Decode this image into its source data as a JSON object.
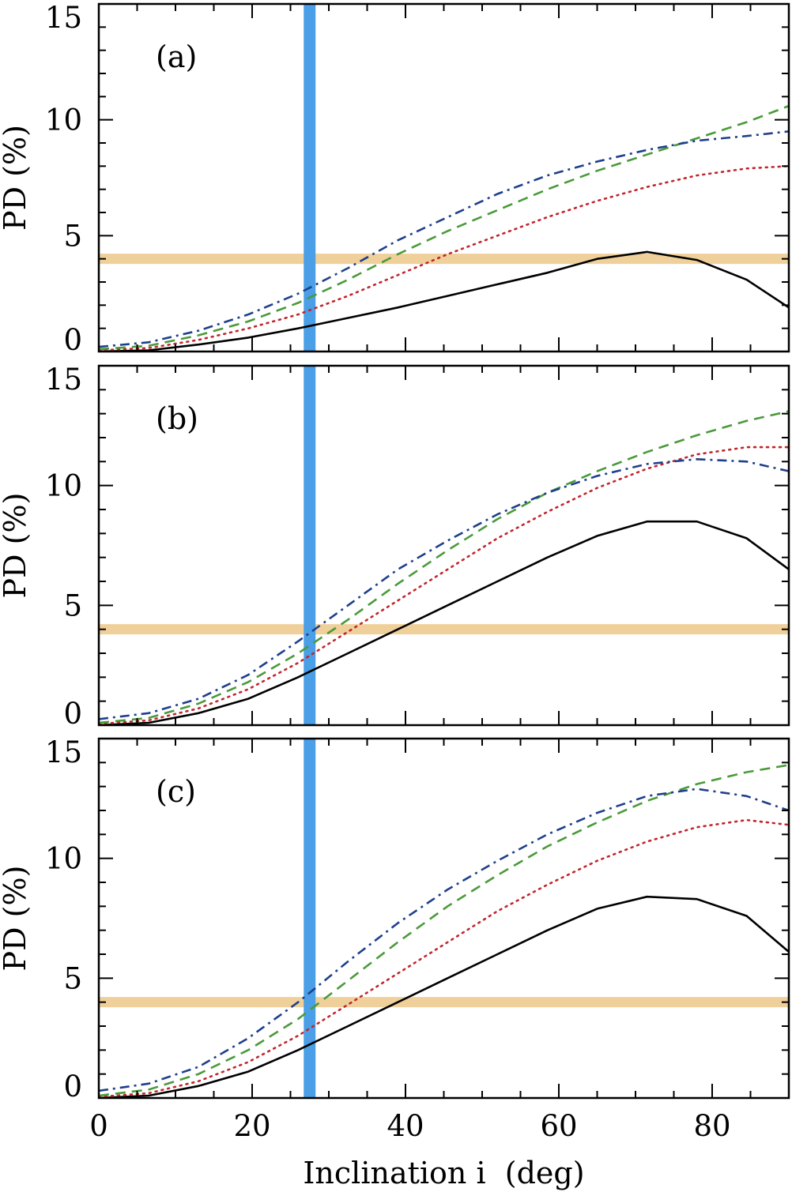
{
  "chart_data": [
    {
      "type": "line",
      "panel_label": "(a)",
      "ylabel": "PD (%)",
      "xlabel": "",
      "xlim": [
        0,
        90
      ],
      "ylim": [
        0,
        15
      ],
      "yticks": [
        "0",
        "5",
        "10",
        "15"
      ],
      "vertical_band_x": 27.5,
      "horizontal_band_y": 4.0,
      "series": [
        {
          "name": "solid",
          "color": "#000000",
          "dash": "solid",
          "x": [
            0,
            6.5,
            13,
            19.5,
            26,
            32.5,
            39,
            45.5,
            52,
            58.5,
            65,
            71.5,
            78,
            84.5,
            90
          ],
          "y": [
            0.0,
            0.05,
            0.3,
            0.6,
            1.0,
            1.45,
            1.9,
            2.4,
            2.9,
            3.4,
            4.0,
            4.3,
            3.95,
            3.1,
            1.9
          ]
        },
        {
          "name": "dotted",
          "color": "#c0262d",
          "dash": "dotted",
          "x": [
            0,
            6.5,
            13,
            19.5,
            26,
            32.5,
            39,
            45.5,
            52,
            58.5,
            65,
            71.5,
            78,
            84.5,
            90
          ],
          "y": [
            0.05,
            0.15,
            0.5,
            1.0,
            1.6,
            2.4,
            3.3,
            4.2,
            5.0,
            5.8,
            6.5,
            7.1,
            7.6,
            7.9,
            8.0
          ]
        },
        {
          "name": "dashed",
          "color": "#4a9a3a",
          "dash": "dashed",
          "x": [
            0,
            6.5,
            13,
            19.5,
            26,
            32.5,
            39,
            45.5,
            52,
            58.5,
            65,
            71.5,
            78,
            84.5,
            90
          ],
          "y": [
            0.1,
            0.25,
            0.7,
            1.3,
            2.1,
            3.1,
            4.2,
            5.2,
            6.1,
            7.0,
            7.8,
            8.5,
            9.2,
            9.9,
            10.6
          ]
        },
        {
          "name": "dash-dot",
          "color": "#1f3f8c",
          "dash": "dashdot",
          "x": [
            0,
            6.5,
            13,
            19.5,
            26,
            32.5,
            39,
            45.5,
            52,
            58.5,
            65,
            71.5,
            78,
            84.5,
            90
          ],
          "y": [
            0.2,
            0.4,
            0.9,
            1.6,
            2.5,
            3.6,
            4.8,
            5.8,
            6.8,
            7.6,
            8.2,
            8.7,
            9.1,
            9.3,
            9.5
          ]
        }
      ]
    },
    {
      "type": "line",
      "panel_label": "(b)",
      "ylabel": "PD (%)",
      "xlabel": "",
      "xlim": [
        0,
        90
      ],
      "ylim": [
        0,
        15
      ],
      "yticks": [
        "0",
        "5",
        "10",
        "15"
      ],
      "vertical_band_x": 27.5,
      "horizontal_band_y": 4.0,
      "series": [
        {
          "name": "solid",
          "color": "#000000",
          "dash": "solid",
          "x": [
            0,
            6.5,
            13,
            19.5,
            26,
            32.5,
            39,
            45.5,
            52,
            58.5,
            65,
            71.5,
            78,
            84.5,
            90
          ],
          "y": [
            0.0,
            0.1,
            0.5,
            1.1,
            2.0,
            3.0,
            4.0,
            5.0,
            6.0,
            7.0,
            7.9,
            8.5,
            8.5,
            7.8,
            6.5
          ]
        },
        {
          "name": "dotted",
          "color": "#c0262d",
          "dash": "dotted",
          "x": [
            0,
            6.5,
            13,
            19.5,
            26,
            32.5,
            39,
            45.5,
            52,
            58.5,
            65,
            71.5,
            78,
            84.5,
            90
          ],
          "y": [
            0.05,
            0.2,
            0.7,
            1.5,
            2.6,
            3.9,
            5.2,
            6.5,
            7.8,
            8.9,
            9.9,
            10.7,
            11.3,
            11.6,
            11.6
          ]
        },
        {
          "name": "dashed",
          "color": "#4a9a3a",
          "dash": "dashed",
          "x": [
            0,
            6.5,
            13,
            19.5,
            26,
            32.5,
            39,
            45.5,
            52,
            58.5,
            65,
            71.5,
            78,
            84.5,
            90
          ],
          "y": [
            0.1,
            0.3,
            0.9,
            1.8,
            3.0,
            4.4,
            5.9,
            7.3,
            8.6,
            9.7,
            10.6,
            11.4,
            12.1,
            12.7,
            13.1
          ]
        },
        {
          "name": "dash-dot",
          "color": "#1f3f8c",
          "dash": "dashdot",
          "x": [
            0,
            6.5,
            13,
            19.5,
            26,
            32.5,
            39,
            45.5,
            52,
            58.5,
            65,
            71.5,
            78,
            84.5,
            90
          ],
          "y": [
            0.25,
            0.5,
            1.1,
            2.1,
            3.5,
            5.0,
            6.5,
            7.7,
            8.8,
            9.7,
            10.4,
            10.9,
            11.1,
            11.0,
            10.6
          ]
        }
      ]
    },
    {
      "type": "line",
      "panel_label": "(c)",
      "ylabel": "PD (%)",
      "xlabel": "Inclination i  (deg)",
      "xlim": [
        0,
        90
      ],
      "ylim": [
        0,
        15
      ],
      "yticks": [
        "0",
        "5",
        "10",
        "15"
      ],
      "xticks": [
        "0",
        "20",
        "40",
        "60",
        "80"
      ],
      "vertical_band_x": 27.5,
      "horizontal_band_y": 4.0,
      "series": [
        {
          "name": "solid",
          "color": "#000000",
          "dash": "solid",
          "x": [
            0,
            6.5,
            13,
            19.5,
            26,
            32.5,
            39,
            45.5,
            52,
            58.5,
            65,
            71.5,
            78,
            84.5,
            90
          ],
          "y": [
            0.0,
            0.1,
            0.5,
            1.1,
            2.0,
            3.0,
            4.0,
            5.0,
            6.0,
            7.0,
            7.9,
            8.4,
            8.3,
            7.6,
            6.1
          ]
        },
        {
          "name": "dotted",
          "color": "#c0262d",
          "dash": "dotted",
          "x": [
            0,
            6.5,
            13,
            19.5,
            26,
            32.5,
            39,
            45.5,
            52,
            58.5,
            65,
            71.5,
            78,
            84.5,
            90
          ],
          "y": [
            0.05,
            0.2,
            0.7,
            1.5,
            2.6,
            3.9,
            5.2,
            6.5,
            7.8,
            8.9,
            9.9,
            10.7,
            11.3,
            11.6,
            11.4
          ]
        },
        {
          "name": "dashed",
          "color": "#4a9a3a",
          "dash": "dashed",
          "x": [
            0,
            6.5,
            13,
            19.5,
            26,
            32.5,
            39,
            45.5,
            52,
            58.5,
            65,
            71.5,
            78,
            84.5,
            90
          ],
          "y": [
            0.1,
            0.35,
            1.0,
            2.0,
            3.3,
            4.9,
            6.5,
            8.0,
            9.3,
            10.5,
            11.5,
            12.4,
            13.1,
            13.6,
            13.9
          ]
        },
        {
          "name": "dash-dot",
          "color": "#1f3f8c",
          "dash": "dashdot",
          "x": [
            0,
            6.5,
            13,
            19.5,
            26,
            32.5,
            39,
            45.5,
            52,
            58.5,
            65,
            71.5,
            78,
            84.5,
            90
          ],
          "y": [
            0.3,
            0.6,
            1.3,
            2.5,
            4.0,
            5.7,
            7.3,
            8.7,
            9.9,
            11.0,
            11.9,
            12.6,
            12.9,
            12.6,
            12.0
          ]
        }
      ]
    }
  ],
  "colors": {
    "vertical_band": "#4a9fe6",
    "horizontal_band": "#f0d09a",
    "axis": "#000000"
  }
}
